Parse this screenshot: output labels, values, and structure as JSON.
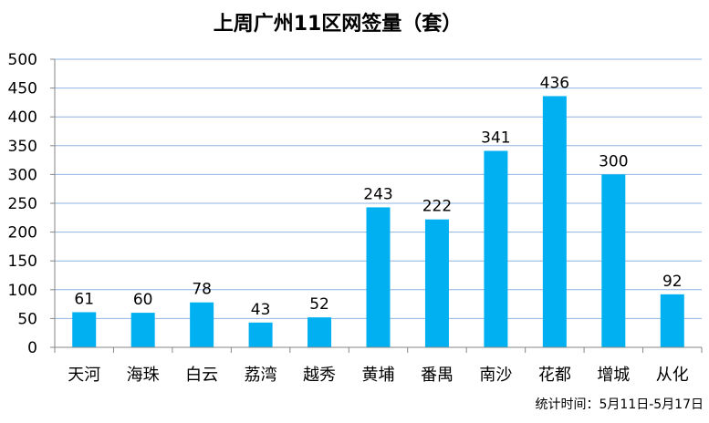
{
  "chart_data": {
    "type": "bar",
    "title": "上周广州11区网签量（套）",
    "categories": [
      "天河",
      "海珠",
      "白云",
      "荔湾",
      "越秀",
      "黄埔",
      "番禺",
      "南沙",
      "花都",
      "增城",
      "从化"
    ],
    "values": [
      61,
      60,
      78,
      43,
      52,
      243,
      222,
      341,
      436,
      300,
      92
    ],
    "xlabel": "",
    "ylabel": "",
    "ylim": [
      0,
      500
    ],
    "yticks": [
      0,
      50,
      100,
      150,
      200,
      250,
      300,
      350,
      400,
      450,
      500
    ],
    "grid": true,
    "legend": "none",
    "bar_color": "#00B0F0",
    "grid_color": "#8EB4E3",
    "annotation": "统计时间：5月11日-5月17日"
  }
}
